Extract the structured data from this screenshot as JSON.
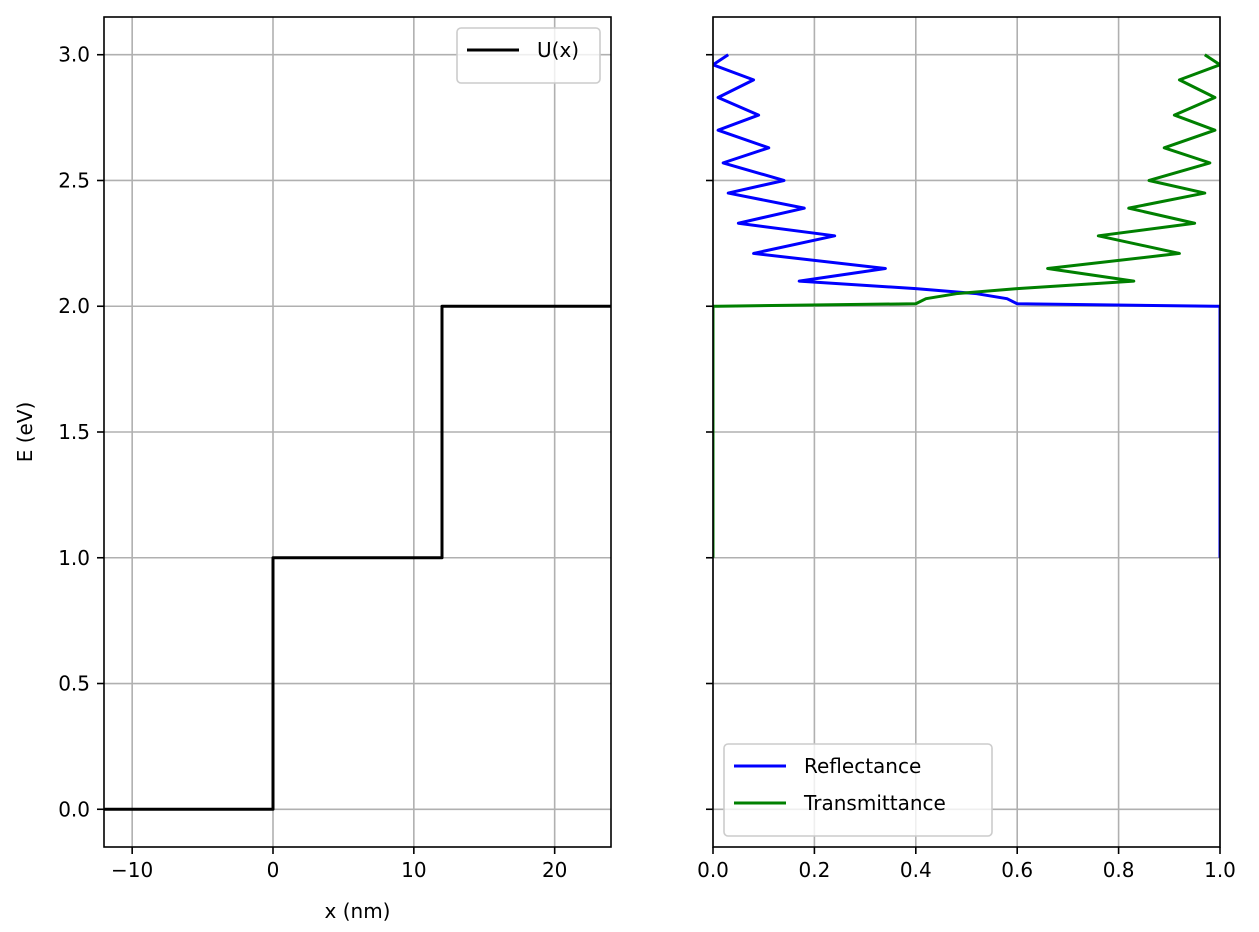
{
  "chart_data": [
    {
      "type": "line",
      "title": "",
      "xlabel": "x (nm)",
      "ylabel": "E (eV)",
      "xlim": [
        -12,
        24
      ],
      "ylim": [
        -0.15,
        3.15
      ],
      "xticks": [
        -10,
        0,
        10,
        20
      ],
      "xtick_labels": [
        "−10",
        "0",
        "10",
        "20"
      ],
      "yticks": [
        0.0,
        0.5,
        1.0,
        1.5,
        2.0,
        2.5,
        3.0
      ],
      "ytick_labels": [
        "0.0",
        "0.5",
        "1.0",
        "1.5",
        "2.0",
        "2.5",
        "3.0"
      ],
      "grid": true,
      "legend": "top-right",
      "series": [
        {
          "name": "U(x)",
          "color": "#000000",
          "x": [
            -12,
            0,
            0,
            12,
            12,
            24
          ],
          "y": [
            0,
            0,
            1,
            1,
            2,
            2
          ]
        }
      ]
    },
    {
      "type": "line",
      "title": "",
      "xlabel": "",
      "ylabel": "",
      "xlim": [
        0.0,
        1.0
      ],
      "ylim": [
        -0.15,
        3.15
      ],
      "xticks": [
        0.0,
        0.2,
        0.4,
        0.6,
        0.8,
        1.0
      ],
      "xtick_labels": [
        "0.0",
        "0.2",
        "0.4",
        "0.6",
        "0.8",
        "1.0"
      ],
      "yticks": [
        0.0,
        0.5,
        1.0,
        1.5,
        2.0,
        2.5,
        3.0
      ],
      "ytick_labels": [],
      "grid": true,
      "legend": "lower-left",
      "series": [
        {
          "name": "Reflectance",
          "color": "#0000ff",
          "x": [
            1.0,
            1.0,
            0.99,
            0.6,
            0.58,
            0.52,
            0.4,
            0.17,
            0.34,
            0.08,
            0.24,
            0.05,
            0.18,
            0.03,
            0.14,
            0.02,
            0.11,
            0.01,
            0.09,
            0.01,
            0.08,
            0.0,
            0.03
          ],
          "y": [
            1.0,
            2.0,
            2.0,
            2.01,
            2.03,
            2.05,
            2.07,
            2.1,
            2.15,
            2.21,
            2.28,
            2.33,
            2.39,
            2.45,
            2.5,
            2.57,
            2.63,
            2.7,
            2.76,
            2.83,
            2.9,
            2.96,
            3.0
          ]
        },
        {
          "name": "Transmittance",
          "color": "#008000",
          "x": [
            0.0,
            0.0,
            0.01,
            0.4,
            0.42,
            0.48,
            0.6,
            0.83,
            0.66,
            0.92,
            0.76,
            0.95,
            0.82,
            0.97,
            0.86,
            0.98,
            0.89,
            0.99,
            0.91,
            0.99,
            0.92,
            1.0,
            0.97
          ],
          "y": [
            1.0,
            2.0,
            2.0,
            2.01,
            2.03,
            2.05,
            2.07,
            2.1,
            2.15,
            2.21,
            2.28,
            2.33,
            2.39,
            2.45,
            2.5,
            2.57,
            2.63,
            2.7,
            2.76,
            2.83,
            2.9,
            2.96,
            3.0
          ]
        }
      ]
    }
  ]
}
